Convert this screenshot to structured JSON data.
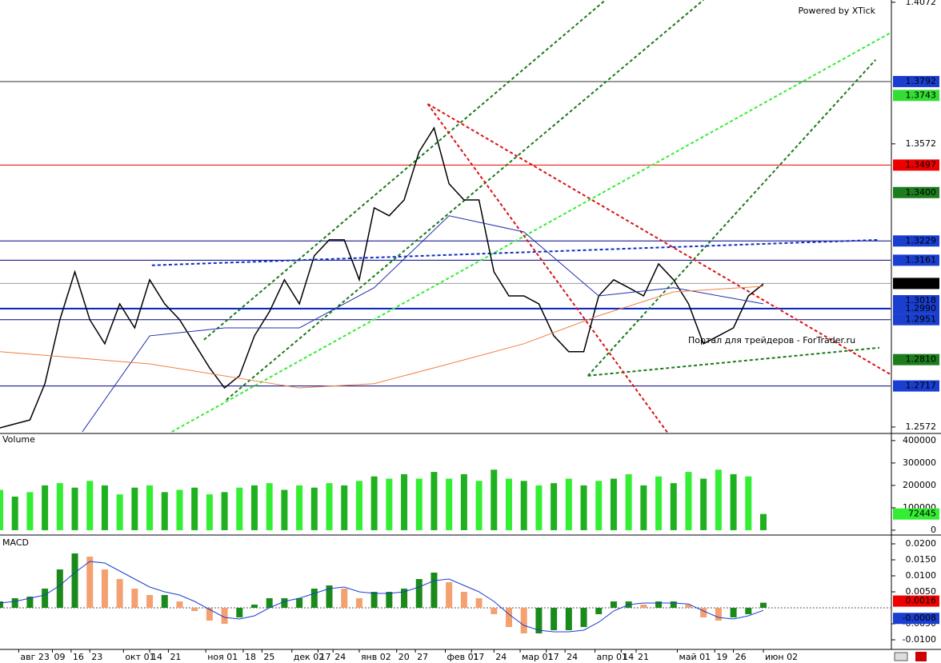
{
  "chart_data": [
    {
      "type": "line",
      "credit": "Powered by XTick",
      "watermark": "Портал для трейдеров - ForTrader.ru",
      "xlim": [
        0,
        238
      ],
      "xticks": [
        {
          "value": 5,
          "label": "авг 23"
        },
        {
          "value": 14,
          "label": "09"
        },
        {
          "value": 19,
          "label": "16"
        },
        {
          "value": 24,
          "label": "23"
        },
        {
          "value": 33,
          "label": "окт 01"
        },
        {
          "value": 40,
          "label": "14"
        },
        {
          "value": 45,
          "label": "21"
        },
        {
          "value": 55,
          "label": "ноя 01"
        },
        {
          "value": 65,
          "label": "18"
        },
        {
          "value": 70,
          "label": "25"
        },
        {
          "value": 78,
          "label": "дек 02"
        },
        {
          "value": 85,
          "label": "17"
        },
        {
          "value": 89,
          "label": "24"
        },
        {
          "value": 96,
          "label": "янв 02"
        },
        {
          "value": 106,
          "label": "20"
        },
        {
          "value": 111,
          "label": "27"
        },
        {
          "value": 119,
          "label": "фев 01"
        },
        {
          "value": 126,
          "label": "17"
        },
        {
          "value": 132,
          "label": "24"
        },
        {
          "value": 139,
          "label": "мар 01"
        },
        {
          "value": 146,
          "label": "17"
        },
        {
          "value": 151,
          "label": "24"
        },
        {
          "value": 159,
          "label": "апр 01"
        },
        {
          "value": 166,
          "label": "14"
        },
        {
          "value": 170,
          "label": "21"
        },
        {
          "value": 181,
          "label": "май 01"
        },
        {
          "value": 191,
          "label": "19"
        },
        {
          "value": 196,
          "label": "26"
        },
        {
          "value": 204,
          "label": "июн 02"
        }
      ],
      "ylim": [
        1.2552,
        1.408
      ],
      "yticks": [
        1.4072,
        1.3572,
        1.2572
      ],
      "series": [
        {
          "color": "#000000",
          "x": [
            0,
            4,
            8,
            12,
            16,
            20,
            24,
            28,
            32,
            36,
            40,
            44,
            48,
            52,
            56,
            60,
            64,
            68,
            72,
            76,
            80,
            84,
            88,
            92,
            96,
            100,
            104,
            108,
            112,
            116,
            120,
            124,
            128,
            132,
            136,
            140,
            144,
            148,
            152,
            156,
            160,
            164,
            168,
            172,
            176,
            180,
            184,
            188,
            192,
            196,
            200,
            204
          ],
          "values": [
            1.2569,
            1.2583,
            1.2597,
            1.2725,
            1.2951,
            1.312,
            1.2951,
            1.2866,
            1.3007,
            1.2922,
            1.3092,
            1.3007,
            1.2951,
            1.2866,
            1.2781,
            1.271,
            1.2753,
            1.2894,
            1.2979,
            1.3092,
            1.3007,
            1.3177,
            1.3233,
            1.3233,
            1.3092,
            1.3346,
            1.3318,
            1.3374,
            1.3544,
            1.3628,
            1.3431,
            1.3374,
            1.3374,
            1.312,
            1.3035,
            1.3035,
            1.3007,
            1.2894,
            1.2838,
            1.2838,
            1.3035,
            1.3092,
            1.3064,
            1.3035,
            1.3148,
            1.3092,
            1.3007,
            1.2866,
            1.2894,
            1.2922,
            1.3035,
            1.3077
          ]
        },
        {
          "color": "#1f2fb0",
          "x": [
            22,
            40,
            60,
            80,
            100,
            120,
            140,
            160,
            180,
            204
          ],
          "values": [
            1.2555,
            1.2894,
            1.2922,
            1.2922,
            1.3064,
            1.3318,
            1.3261,
            1.3035,
            1.3064,
            1.3007
          ]
        },
        {
          "color": "#f08040",
          "x": [
            0,
            40,
            80,
            100,
            120,
            140,
            160,
            180,
            204
          ],
          "values": [
            1.2838,
            1.2795,
            1.271,
            1.2725,
            1.2795,
            1.2866,
            1.2965,
            1.3049,
            1.3069
          ]
        }
      ],
      "trendlines": [
        {
          "color": "#1a7a1a",
          "x": [
            54.5,
            161.8
          ],
          "values": [
            1.288,
            1.408
          ]
        },
        {
          "color": "#1a7a1a",
          "x": [
            60.5,
            188
          ],
          "values": [
            1.2668,
            1.408
          ]
        },
        {
          "color": "#33ee33",
          "x": [
            45.9,
            240.4
          ],
          "values": [
            1.2555,
            1.3982
          ]
        },
        {
          "color": "#1a7a1a",
          "x": [
            157.1,
            234
          ],
          "values": [
            1.2753,
            1.3869
          ]
        },
        {
          "color": "#1a7a1a",
          "x": [
            157.1,
            235
          ],
          "values": [
            1.2753,
            1.2852
          ]
        },
        {
          "color": "#dd1111",
          "x": [
            114.3,
            240.4
          ],
          "values": [
            1.3713,
            1.2739
          ]
        },
        {
          "color": "#dd1111",
          "x": [
            114.3,
            178.4
          ],
          "values": [
            1.3713,
            1.2552
          ]
        },
        {
          "color": "#1030c0",
          "x": [
            40.6,
            235
          ],
          "values": [
            1.3143,
            1.3233
          ]
        }
      ],
      "last_marker": "▼",
      "levels": [
        {
          "value": 1.3792,
          "color": "#1a3fd0",
          "line": "#303030"
        },
        {
          "value": 1.3743,
          "color": "#33dd33"
        },
        {
          "value": 1.3497,
          "color": "#ee0000",
          "line": "#ee0000"
        },
        {
          "value": 1.34,
          "label": "1.3400",
          "color": "#1d7d1d"
        },
        {
          "value": 1.3229,
          "color": "#1a3fd0",
          "line": "#000080"
        },
        {
          "value": 1.3161,
          "color": "#1a3fd0",
          "line": "#000080"
        },
        {
          "value": 1.3079,
          "color": "#000000",
          "line": "#999999"
        },
        {
          "value": 1.3018,
          "color": "#1a3fd0"
        },
        {
          "value": 1.299,
          "label": "1.2990",
          "color": "#1a3fd0",
          "line": "#0020c0"
        },
        {
          "value": 1.2951,
          "color": "#1a3fd0",
          "line": "#000080"
        },
        {
          "value": 1.281,
          "label": "1.2810",
          "color": "#1d7d1d"
        },
        {
          "value": 1.2717,
          "color": "#1a3fd0",
          "line": "#000080"
        }
      ]
    },
    {
      "type": "bar",
      "title": "Volume",
      "color": "#33ee33",
      "color2": "#1fb01f",
      "xlim": [
        0,
        238
      ],
      "ylim": [
        -18000,
        421000
      ],
      "yticks": [
        0,
        100000,
        200000,
        300000,
        400000
      ],
      "x": [
        0,
        4,
        8,
        12,
        16,
        20,
        24,
        28,
        32,
        36,
        40,
        44,
        48,
        52,
        56,
        60,
        64,
        68,
        72,
        76,
        80,
        84,
        88,
        92,
        96,
        100,
        104,
        108,
        112,
        116,
        120,
        124,
        128,
        132,
        136,
        140,
        144,
        148,
        152,
        156,
        160,
        164,
        168,
        172,
        176,
        180,
        184,
        188,
        192,
        196,
        200,
        204
      ],
      "values": [
        180000,
        150000,
        170000,
        200000,
        210000,
        190000,
        220000,
        200000,
        160000,
        190000,
        200000,
        170000,
        180000,
        190000,
        160000,
        170000,
        190000,
        200000,
        210000,
        180000,
        200000,
        190000,
        210000,
        200000,
        220000,
        240000,
        230000,
        250000,
        230000,
        260000,
        230000,
        250000,
        220000,
        270000,
        230000,
        220000,
        200000,
        210000,
        230000,
        200000,
        220000,
        230000,
        250000,
        200000,
        240000,
        210000,
        260000,
        230000,
        270000,
        250000,
        240000,
        72445
      ]
    },
    {
      "type": "macd",
      "title": "MACD",
      "xlim": [
        0,
        238
      ],
      "ylim": [
        -0.013,
        0.022
      ],
      "yticks": [
        {
          "value": 0.02,
          "label": "0.0200"
        },
        {
          "value": 0.015,
          "label": "0.0150"
        },
        {
          "value": 0.01,
          "label": "0.0100"
        },
        {
          "value": 0.005,
          "label": "0.0050"
        },
        {
          "value": -0.005,
          "label": "-0.0050"
        },
        {
          "value": -0.01,
          "label": "-0.0100"
        }
      ],
      "x": [
        0,
        4,
        8,
        12,
        16,
        20,
        24,
        28,
        32,
        36,
        40,
        44,
        48,
        52,
        56,
        60,
        64,
        68,
        72,
        76,
        80,
        84,
        88,
        92,
        96,
        100,
        104,
        108,
        112,
        116,
        120,
        124,
        128,
        132,
        136,
        140,
        144,
        148,
        152,
        156,
        160,
        164,
        168,
        172,
        176,
        180,
        184,
        188,
        192,
        196,
        200,
        204
      ],
      "series": [
        {
          "color": "#ee0000",
          "up": "#1a8a1a",
          "down": "#f5a070",
          "values": [
            0.002,
            0.003,
            0.0035,
            0.006,
            0.012,
            0.017,
            0.016,
            0.012,
            0.009,
            0.006,
            0.004,
            0.004,
            0.002,
            -0.001,
            -0.004,
            -0.005,
            -0.003,
            0.001,
            0.003,
            0.003,
            0.003,
            0.006,
            0.007,
            0.006,
            0.003,
            0.005,
            0.005,
            0.006,
            0.009,
            0.011,
            0.008,
            0.005,
            0.003,
            -0.002,
            -0.006,
            -0.008,
            -0.008,
            -0.007,
            -0.007,
            -0.006,
            -0.002,
            0.002,
            0.002,
            0.001,
            0.002,
            0.002,
            0.001,
            -0.003,
            -0.004,
            -0.003,
            -0.002,
            0.0016
          ]
        },
        {
          "color": "#1a3fd0",
          "values": [
            0.0015,
            0.002,
            0.003,
            0.004,
            0.007,
            0.011,
            0.0145,
            0.014,
            0.0115,
            0.009,
            0.0065,
            0.005,
            0.004,
            0.002,
            -0.0005,
            -0.003,
            -0.0035,
            -0.0025,
            0,
            0.002,
            0.003,
            0.0045,
            0.006,
            0.0065,
            0.005,
            0.0045,
            0.0045,
            0.005,
            0.0065,
            0.0085,
            0.009,
            0.007,
            0.005,
            0.002,
            -0.002,
            -0.0055,
            -0.007,
            -0.0075,
            -0.0075,
            -0.007,
            -0.0045,
            -0.001,
            0.001,
            0.0015,
            0.0015,
            0.0015,
            0.0012,
            -0.001,
            -0.003,
            -0.0035,
            -0.0025,
            -0.0008
          ]
        }
      ]
    }
  ]
}
